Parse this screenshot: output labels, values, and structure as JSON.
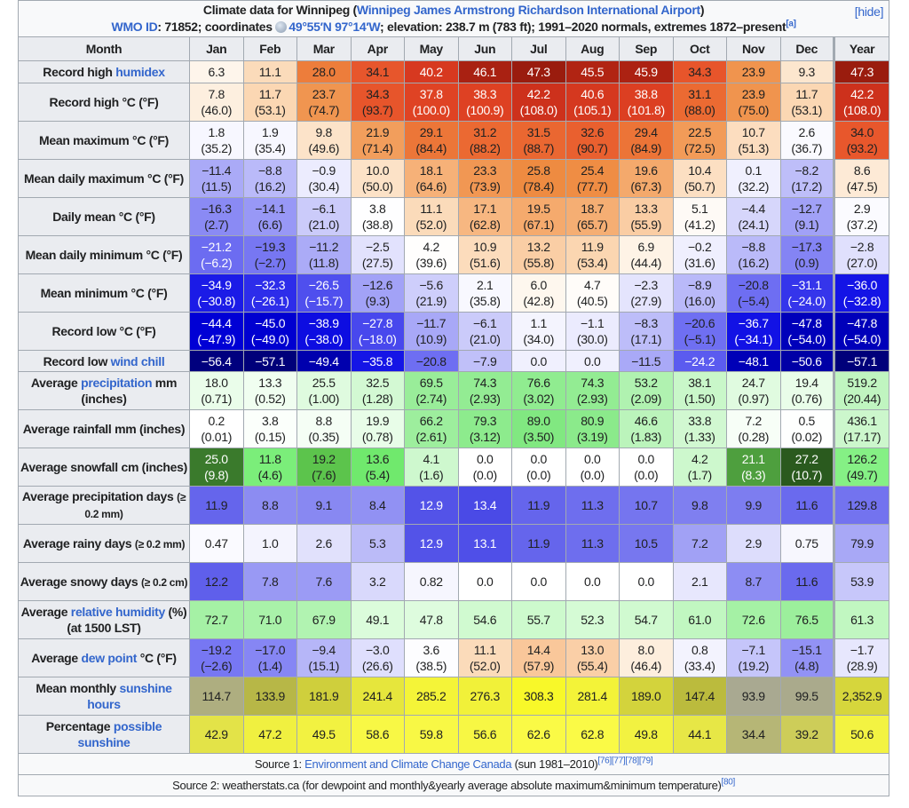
{
  "caption": {
    "title_pre": "Climate data for Winnipeg (",
    "title_link": "Winnipeg James Armstrong Richardson International Airport",
    "title_post": ")",
    "hide": "[hide]",
    "wmo_link": "WMO ID",
    "wmo_text": ": 71852; coordinates ",
    "coord_icon": "globe-icon",
    "coord_link": "49°55′N 97°14′W",
    "rest": "; elevation: 238.7 m (783 ft); 1991–2020 normals, extremes 1872–present",
    "note": "[a]"
  },
  "header": [
    "Month",
    "Jan",
    "Feb",
    "Mar",
    "Apr",
    "May",
    "Jun",
    "Jul",
    "Aug",
    "Sep",
    "Oct",
    "Nov",
    "Dec",
    "Year"
  ],
  "rows": [
    {
      "label": [
        {
          "t": "Record high "
        },
        {
          "link": "humidex"
        }
      ],
      "scale": "temp",
      "cells": [
        [
          "6.3"
        ],
        [
          "11.1"
        ],
        [
          "28.0"
        ],
        [
          "34.1"
        ],
        [
          "40.2"
        ],
        [
          "46.1"
        ],
        [
          "47.3"
        ],
        [
          "45.5"
        ],
        [
          "45.9"
        ],
        [
          "34.3"
        ],
        [
          "23.9"
        ],
        [
          "9.3"
        ],
        [
          "47.3"
        ]
      ]
    },
    {
      "label": [
        {
          "t": "Record high °C (°F)"
        }
      ],
      "scale": "temp",
      "cells": [
        [
          "7.8",
          "(46.0)"
        ],
        [
          "11.7",
          "(53.1)"
        ],
        [
          "23.7",
          "(74.7)"
        ],
        [
          "34.3",
          "(93.7)"
        ],
        [
          "37.8",
          "(100.0)"
        ],
        [
          "38.3",
          "(100.9)"
        ],
        [
          "42.2",
          "(108.0)"
        ],
        [
          "40.6",
          "(105.1)"
        ],
        [
          "38.8",
          "(101.8)"
        ],
        [
          "31.1",
          "(88.0)"
        ],
        [
          "23.9",
          "(75.0)"
        ],
        [
          "11.7",
          "(53.1)"
        ],
        [
          "42.2",
          "(108.0)"
        ]
      ]
    },
    {
      "label": [
        {
          "t": "Mean maximum °C (°F)"
        }
      ],
      "scale": "temp",
      "cells": [
        [
          "1.8",
          "(35.2)"
        ],
        [
          "1.9",
          "(35.4)"
        ],
        [
          "9.8",
          "(49.6)"
        ],
        [
          "21.9",
          "(71.4)"
        ],
        [
          "29.1",
          "(84.4)"
        ],
        [
          "31.2",
          "(88.2)"
        ],
        [
          "31.5",
          "(88.7)"
        ],
        [
          "32.6",
          "(90.7)"
        ],
        [
          "29.4",
          "(84.9)"
        ],
        [
          "22.5",
          "(72.5)"
        ],
        [
          "10.7",
          "(51.3)"
        ],
        [
          "2.6",
          "(36.7)"
        ],
        [
          "34.0",
          "(93.2)"
        ]
      ]
    },
    {
      "label": [
        {
          "t": "Mean daily maximum °C (°F)"
        }
      ],
      "scale": "temp",
      "cells": [
        [
          "−11.4",
          "(11.5)"
        ],
        [
          "−8.8",
          "(16.2)"
        ],
        [
          "−0.9",
          "(30.4)"
        ],
        [
          "10.0",
          "(50.0)"
        ],
        [
          "18.1",
          "(64.6)"
        ],
        [
          "23.3",
          "(73.9)"
        ],
        [
          "25.8",
          "(78.4)"
        ],
        [
          "25.4",
          "(77.7)"
        ],
        [
          "19.6",
          "(67.3)"
        ],
        [
          "10.4",
          "(50.7)"
        ],
        [
          "0.1",
          "(32.2)"
        ],
        [
          "−8.2",
          "(17.2)"
        ],
        [
          "8.6",
          "(47.5)"
        ]
      ]
    },
    {
      "label": [
        {
          "t": "Daily mean °C (°F)"
        }
      ],
      "scale": "temp",
      "cells": [
        [
          "−16.3",
          "(2.7)"
        ],
        [
          "−14.1",
          "(6.6)"
        ],
        [
          "−6.1",
          "(21.0)"
        ],
        [
          "3.8",
          "(38.8)"
        ],
        [
          "11.1",
          "(52.0)"
        ],
        [
          "17.1",
          "(62.8)"
        ],
        [
          "19.5",
          "(67.1)"
        ],
        [
          "18.7",
          "(65.7)"
        ],
        [
          "13.3",
          "(55.9)"
        ],
        [
          "5.1",
          "(41.2)"
        ],
        [
          "−4.4",
          "(24.1)"
        ],
        [
          "−12.7",
          "(9.1)"
        ],
        [
          "2.9",
          "(37.2)"
        ]
      ]
    },
    {
      "label": [
        {
          "t": "Mean daily minimum °C (°F)"
        }
      ],
      "scale": "temp",
      "cells": [
        [
          "−21.2",
          "(−6.2)"
        ],
        [
          "−19.3",
          "(−2.7)"
        ],
        [
          "−11.2",
          "(11.8)"
        ],
        [
          "−2.5",
          "(27.5)"
        ],
        [
          "4.2",
          "(39.6)"
        ],
        [
          "10.9",
          "(51.6)"
        ],
        [
          "13.2",
          "(55.8)"
        ],
        [
          "11.9",
          "(53.4)"
        ],
        [
          "6.9",
          "(44.4)"
        ],
        [
          "−0.2",
          "(31.6)"
        ],
        [
          "−8.8",
          "(16.2)"
        ],
        [
          "−17.3",
          "(0.9)"
        ],
        [
          "−2.8",
          "(27.0)"
        ]
      ]
    },
    {
      "label": [
        {
          "t": "Mean minimum °C (°F)"
        }
      ],
      "scale": "temp",
      "cells": [
        [
          "−34.9",
          "(−30.8)"
        ],
        [
          "−32.3",
          "(−26.1)"
        ],
        [
          "−26.5",
          "(−15.7)"
        ],
        [
          "−12.6",
          "(9.3)"
        ],
        [
          "−5.6",
          "(21.9)"
        ],
        [
          "2.1",
          "(35.8)"
        ],
        [
          "6.0",
          "(42.8)"
        ],
        [
          "4.7",
          "(40.5)"
        ],
        [
          "−2.3",
          "(27.9)"
        ],
        [
          "−8.9",
          "(16.0)"
        ],
        [
          "−20.8",
          "(−5.4)"
        ],
        [
          "−31.1",
          "(−24.0)"
        ],
        [
          "−36.0",
          "(−32.8)"
        ]
      ]
    },
    {
      "label": [
        {
          "t": "Record low °C (°F)"
        }
      ],
      "scale": "temp",
      "cells": [
        [
          "−44.4",
          "(−47.9)"
        ],
        [
          "−45.0",
          "(−49.0)"
        ],
        [
          "−38.9",
          "(−38.0)"
        ],
        [
          "−27.8",
          "(−18.0)"
        ],
        [
          "−11.7",
          "(10.9)"
        ],
        [
          "−6.1",
          "(21.0)"
        ],
        [
          "1.1",
          "(34.0)"
        ],
        [
          "−1.1",
          "(30.0)"
        ],
        [
          "−8.3",
          "(17.1)"
        ],
        [
          "−20.6",
          "(−5.1)"
        ],
        [
          "−36.7",
          "(−34.1)"
        ],
        [
          "−47.8",
          "(−54.0)"
        ],
        [
          "−47.8",
          "(−54.0)"
        ]
      ]
    },
    {
      "label": [
        {
          "t": "Record low "
        },
        {
          "link": "wind chill"
        }
      ],
      "scale": "temp",
      "cells": [
        [
          "−56.4"
        ],
        [
          "−57.1"
        ],
        [
          "−49.4"
        ],
        [
          "−35.8"
        ],
        [
          "−20.8"
        ],
        [
          "−7.9"
        ],
        [
          "0.0"
        ],
        [
          "0.0"
        ],
        [
          "−11.5"
        ],
        [
          "−24.2"
        ],
        [
          "−48.1"
        ],
        [
          "−50.6"
        ],
        [
          "−57.1"
        ]
      ]
    },
    {
      "label": [
        {
          "t": "Average "
        },
        {
          "link": "precipitation"
        },
        {
          "t": " mm (inches)"
        }
      ],
      "scale": "precip",
      "cells": [
        [
          "18.0",
          "(0.71)"
        ],
        [
          "13.3",
          "(0.52)"
        ],
        [
          "25.5",
          "(1.00)"
        ],
        [
          "32.5",
          "(1.28)"
        ],
        [
          "69.5",
          "(2.74)"
        ],
        [
          "74.3",
          "(2.93)"
        ],
        [
          "76.6",
          "(3.02)"
        ],
        [
          "74.3",
          "(2.93)"
        ],
        [
          "53.2",
          "(2.09)"
        ],
        [
          "38.1",
          "(1.50)"
        ],
        [
          "24.7",
          "(0.97)"
        ],
        [
          "19.4",
          "(0.76)"
        ],
        [
          "519.2",
          "(20.44)"
        ]
      ]
    },
    {
      "label": [
        {
          "t": "Average rainfall mm (inches)"
        }
      ],
      "scale": "precip",
      "cells": [
        [
          "0.2",
          "(0.01)"
        ],
        [
          "3.8",
          "(0.15)"
        ],
        [
          "8.8",
          "(0.35)"
        ],
        [
          "19.9",
          "(0.78)"
        ],
        [
          "66.2",
          "(2.61)"
        ],
        [
          "79.3",
          "(3.12)"
        ],
        [
          "89.0",
          "(3.50)"
        ],
        [
          "80.9",
          "(3.19)"
        ],
        [
          "46.6",
          "(1.83)"
        ],
        [
          "33.8",
          "(1.33)"
        ],
        [
          "7.2",
          "(0.28)"
        ],
        [
          "0.5",
          "(0.02)"
        ],
        [
          "436.1",
          "(17.17)"
        ]
      ]
    },
    {
      "label": [
        {
          "t": "Average snowfall cm (inches)"
        }
      ],
      "scale": "snow",
      "cells": [
        [
          "25.0",
          "(9.8)"
        ],
        [
          "11.8",
          "(4.6)"
        ],
        [
          "19.2",
          "(7.6)"
        ],
        [
          "13.6",
          "(5.4)"
        ],
        [
          "4.1",
          "(1.6)"
        ],
        [
          "0.0",
          "(0.0)"
        ],
        [
          "0.0",
          "(0.0)"
        ],
        [
          "0.0",
          "(0.0)"
        ],
        [
          "0.0",
          "(0.0)"
        ],
        [
          "4.2",
          "(1.7)"
        ],
        [
          "21.1",
          "(8.3)"
        ],
        [
          "27.2",
          "(10.7)"
        ],
        [
          "126.2",
          "(49.7)"
        ]
      ]
    },
    {
      "label": [
        {
          "t": "Average precipitation days "
        },
        {
          "small": "(≥ 0.2 mm)"
        }
      ],
      "scale": "days",
      "cells": [
        [
          "11.9"
        ],
        [
          "8.8"
        ],
        [
          "9.1"
        ],
        [
          "8.4"
        ],
        [
          "12.9"
        ],
        [
          "13.4"
        ],
        [
          "11.9"
        ],
        [
          "11.3"
        ],
        [
          "10.7"
        ],
        [
          "9.8"
        ],
        [
          "9.9"
        ],
        [
          "11.6"
        ],
        [
          "129.8"
        ]
      ]
    },
    {
      "label": [
        {
          "t": "Average rainy days "
        },
        {
          "small": "(≥ 0.2 mm)"
        }
      ],
      "scale": "days",
      "cells": [
        [
          "0.47"
        ],
        [
          "1.0"
        ],
        [
          "2.6"
        ],
        [
          "5.3"
        ],
        [
          "12.9"
        ],
        [
          "13.1"
        ],
        [
          "11.9"
        ],
        [
          "11.3"
        ],
        [
          "10.5"
        ],
        [
          "7.2"
        ],
        [
          "2.9"
        ],
        [
          "0.75"
        ],
        [
          "79.9"
        ]
      ]
    },
    {
      "label": [
        {
          "t": "Average snowy days "
        },
        {
          "small": "(≥ 0.2 cm)"
        }
      ],
      "scale": "days",
      "cells": [
        [
          "12.2"
        ],
        [
          "7.8"
        ],
        [
          "7.6"
        ],
        [
          "3.2"
        ],
        [
          "0.82"
        ],
        [
          "0.0"
        ],
        [
          "0.0"
        ],
        [
          "0.0"
        ],
        [
          "0.0"
        ],
        [
          "2.1"
        ],
        [
          "8.7"
        ],
        [
          "11.6"
        ],
        [
          "53.9"
        ]
      ]
    },
    {
      "label": [
        {
          "t": "Average "
        },
        {
          "link": "relative humidity"
        },
        {
          "t": " (%) (at 1500 LST)"
        }
      ],
      "scale": "humidity",
      "cells": [
        [
          "72.7"
        ],
        [
          "71.0"
        ],
        [
          "67.9"
        ],
        [
          "49.1"
        ],
        [
          "47.8"
        ],
        [
          "54.6"
        ],
        [
          "55.7"
        ],
        [
          "52.3"
        ],
        [
          "54.7"
        ],
        [
          "61.0"
        ],
        [
          "72.6"
        ],
        [
          "76.5"
        ],
        [
          "61.3"
        ]
      ]
    },
    {
      "label": [
        {
          "t": "Average "
        },
        {
          "link": "dew point"
        },
        {
          "t": " °C (°F)"
        }
      ],
      "scale": "temp",
      "cells": [
        [
          "−19.2",
          "(−2.6)"
        ],
        [
          "−17.0",
          "(1.4)"
        ],
        [
          "−9.4",
          "(15.1)"
        ],
        [
          "−3.0",
          "(26.6)"
        ],
        [
          "3.6",
          "(38.5)"
        ],
        [
          "11.1",
          "(52.0)"
        ],
        [
          "14.4",
          "(57.9)"
        ],
        [
          "13.0",
          "(55.4)"
        ],
        [
          "8.0",
          "(46.4)"
        ],
        [
          "0.8",
          "(33.4)"
        ],
        [
          "−7.1",
          "(19.2)"
        ],
        [
          "−15.1",
          "(4.8)"
        ],
        [
          "−1.7",
          "(28.9)"
        ]
      ]
    },
    {
      "label": [
        {
          "t": "Mean monthly "
        },
        {
          "link": "sunshine hours"
        }
      ],
      "scale": "sunhours",
      "cells": [
        [
          "114.7"
        ],
        [
          "133.9"
        ],
        [
          "181.9"
        ],
        [
          "241.4"
        ],
        [
          "285.2"
        ],
        [
          "276.3"
        ],
        [
          "308.3"
        ],
        [
          "281.4"
        ],
        [
          "189.0"
        ],
        [
          "147.4"
        ],
        [
          "93.9"
        ],
        [
          "99.5"
        ],
        [
          "2,352.9"
        ]
      ]
    },
    {
      "label": [
        {
          "t": "Percentage "
        },
        {
          "link": "possible sunshine"
        }
      ],
      "scale": "sunpct",
      "cells": [
        [
          "42.9"
        ],
        [
          "47.2"
        ],
        [
          "49.5"
        ],
        [
          "58.6"
        ],
        [
          "59.8"
        ],
        [
          "56.6"
        ],
        [
          "62.6"
        ],
        [
          "62.8"
        ],
        [
          "49.8"
        ],
        [
          "44.1"
        ],
        [
          "34.4"
        ],
        [
          "39.2"
        ],
        [
          "50.6"
        ]
      ]
    }
  ],
  "sources": {
    "s1_pre": "Source 1: ",
    "s1_link": "Environment and Climate Change Canada",
    "s1_post": " (sun 1981–2010)",
    "s1_refs": "[76][77][78][79]",
    "s2_text": "Source 2: weatherstats.ca (for dewpoint and monthly&yearly average absolute maximum&minimum temperature)",
    "s2_refs": "[80]"
  }
}
